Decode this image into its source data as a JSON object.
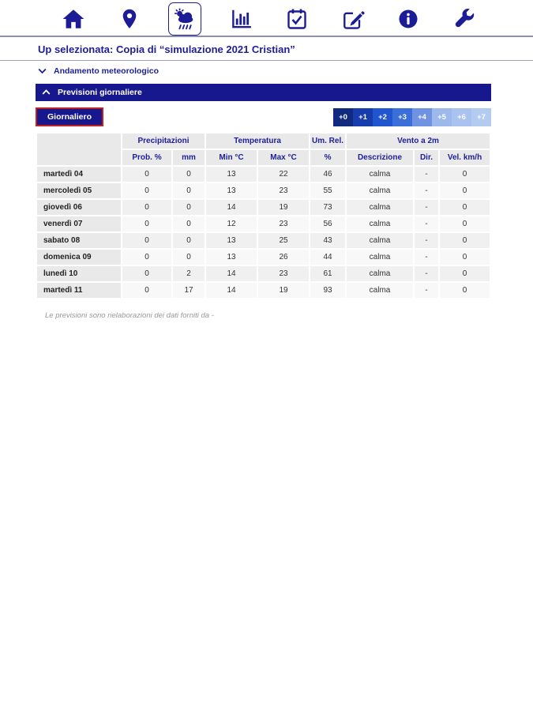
{
  "toolbar": {
    "items": [
      "home",
      "location",
      "weather",
      "statistics",
      "calendar-check",
      "edit",
      "info",
      "tools"
    ],
    "selected": "weather",
    "icon_color": "#1c1c96"
  },
  "header": {
    "title": "Up selezionata: Copia di “simulazione 2021 Cristian”"
  },
  "sections": {
    "andamento": {
      "label": "Andamento meteorologico",
      "state": "collapsed"
    },
    "previsioni": {
      "label": "Previsioni giornaliere",
      "state": "expanded"
    }
  },
  "controls": {
    "view_button_label": "Giornaliero",
    "day_offsets": [
      {
        "label": "+0",
        "color": "#0f2a7e"
      },
      {
        "label": "+1",
        "color": "#173cae"
      },
      {
        "label": "+2",
        "color": "#2055cf"
      },
      {
        "label": "+3",
        "color": "#3a6ed8"
      },
      {
        "label": "+4",
        "color": "#6f93e2"
      },
      {
        "label": "+5",
        "color": "#9db9ec"
      },
      {
        "label": "+6",
        "color": "#a9c2ef"
      },
      {
        "label": "+7",
        "color": "#b3caf1"
      }
    ]
  },
  "table": {
    "groups": [
      {
        "label": "Precipitazioni"
      },
      {
        "label": "Temperatura"
      },
      {
        "label": "Um. Rel."
      },
      {
        "label": "Vento a 2m"
      }
    ],
    "columns": [
      "Prob. %",
      "mm",
      "Min °C",
      "Max °C",
      "%",
      "Descrizione",
      "Dir.",
      "Vel. km/h"
    ],
    "rows": [
      {
        "day": "martedì 04",
        "values": [
          "0",
          "0",
          "13",
          "22",
          "46",
          "calma",
          "-",
          "0"
        ]
      },
      {
        "day": "mercoledì 05",
        "values": [
          "0",
          "0",
          "13",
          "23",
          "55",
          "calma",
          "-",
          "0"
        ]
      },
      {
        "day": "giovedì 06",
        "values": [
          "0",
          "0",
          "14",
          "19",
          "73",
          "calma",
          "-",
          "0"
        ]
      },
      {
        "day": "venerdì 07",
        "values": [
          "0",
          "0",
          "12",
          "23",
          "56",
          "calma",
          "-",
          "0"
        ]
      },
      {
        "day": "sabato 08",
        "values": [
          "0",
          "0",
          "13",
          "25",
          "43",
          "calma",
          "-",
          "0"
        ]
      },
      {
        "day": "domenica 09",
        "values": [
          "0",
          "0",
          "13",
          "26",
          "44",
          "calma",
          "-",
          "0"
        ]
      },
      {
        "day": "lunedì 10",
        "values": [
          "0",
          "2",
          "14",
          "23",
          "61",
          "calma",
          "-",
          "0"
        ]
      },
      {
        "day": "martedì 11",
        "values": [
          "0",
          "17",
          "14",
          "19",
          "93",
          "calma",
          "-",
          "0"
        ]
      }
    ]
  },
  "footer": {
    "note": "Le previsioni sono rielaborazioni dei dati forniti da -"
  }
}
